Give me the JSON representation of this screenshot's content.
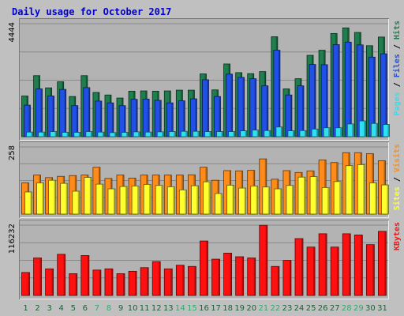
{
  "chart_data": {
    "type": "bar",
    "title": "Daily usage for October 2017",
    "categories": [
      "1",
      "2",
      "3",
      "4",
      "5",
      "6",
      "7",
      "8",
      "9",
      "10",
      "11",
      "12",
      "13",
      "14",
      "15",
      "16",
      "17",
      "18",
      "19",
      "20",
      "21",
      "22",
      "23",
      "24",
      "25",
      "26",
      "27",
      "28",
      "29",
      "30",
      "31"
    ],
    "weekend_days": [
      "7",
      "8",
      "14",
      "15",
      "21",
      "22",
      "28",
      "29"
    ],
    "panels": [
      {
        "id": "pages-files-hits",
        "max_label": "4444",
        "ymax": 4444,
        "legend": [
          "Pages",
          "Files",
          "Hits"
        ],
        "series": [
          {
            "name": "Hits",
            "color": "#1e7e4e",
            "values": [
              1600,
              2400,
              1920,
              2160,
              1580,
              2400,
              1740,
              1640,
              1520,
              1790,
              1800,
              1790,
              1800,
              1830,
              1830,
              2470,
              1840,
              2860,
              2520,
              2480,
              2560,
              3930,
              1880,
              2280,
              3200,
              3400,
              4060,
              4280,
              4100,
              3580,
              3920
            ]
          },
          {
            "name": "Files",
            "color": "#2050e8",
            "values": [
              1240,
              1880,
              1600,
              1860,
              1220,
              1930,
              1400,
              1330,
              1220,
              1470,
              1480,
              1430,
              1330,
              1410,
              1490,
              2240,
              1580,
              2460,
              2330,
              2280,
              2000,
              3400,
              1640,
              2000,
              2840,
              2830,
              3620,
              3720,
              3610,
              3130,
              3260
            ]
          },
          {
            "name": "Pages",
            "color": "#30e0f0",
            "values": [
              180,
              180,
              200,
              170,
              170,
              200,
              180,
              160,
              170,
              190,
              180,
              190,
              200,
              210,
              210,
              200,
              200,
              200,
              230,
              260,
              240,
              380,
              230,
              240,
              300,
              350,
              350,
              500,
              620,
              520,
              480
            ]
          }
        ]
      },
      {
        "id": "sites-visits",
        "max_label": "258",
        "ymax": 258,
        "legend": [
          "Sites",
          "Visits"
        ],
        "series": [
          {
            "name": "Visits",
            "color": "#ff8c1a",
            "values": [
              120,
              150,
              140,
              145,
              148,
              150,
              180,
              137,
              150,
              138,
              150,
              150,
              150,
              150,
              151,
              180,
              130,
              167,
              166,
              168,
              212,
              134,
              167,
              160,
              166,
              208,
              198,
              236,
              236,
              232,
              205
            ]
          },
          {
            "name": "Sites",
            "color": "#ffff30",
            "values": [
              85,
              120,
              130,
              118,
              88,
              141,
              115,
              97,
              106,
              108,
              114,
              110,
              105,
              93,
              109,
              124,
              79,
              111,
              100,
              108,
              104,
              97,
              110,
              142,
              144,
              102,
              125,
              186,
              190,
              120,
              112
            ]
          }
        ]
      },
      {
        "id": "kbytes",
        "max_label": "116232",
        "ymax": 116232,
        "legend": [
          "KBytes"
        ],
        "series": [
          {
            "name": "KBytes",
            "color": "#ff1010",
            "values": [
              38000,
              62000,
              44000,
              68000,
              36000,
              66000,
              42000,
              44000,
              36000,
              40000,
              46000,
              56000,
              44000,
              50000,
              48000,
              90000,
              60000,
              70000,
              64000,
              62000,
              116000,
              48000,
              58000,
              94000,
              80000,
              102000,
              80000,
              102000,
              100000,
              84000,
              106000
            ]
          }
        ]
      }
    ]
  },
  "colors": {
    "background": "#c0c0c0",
    "title": "#0000cc",
    "plot_bg": "#b3b3b3",
    "weekday_label": "#1f5f3a",
    "weekend_label": "#38a870",
    "kbytes_label": "#ff1010"
  }
}
